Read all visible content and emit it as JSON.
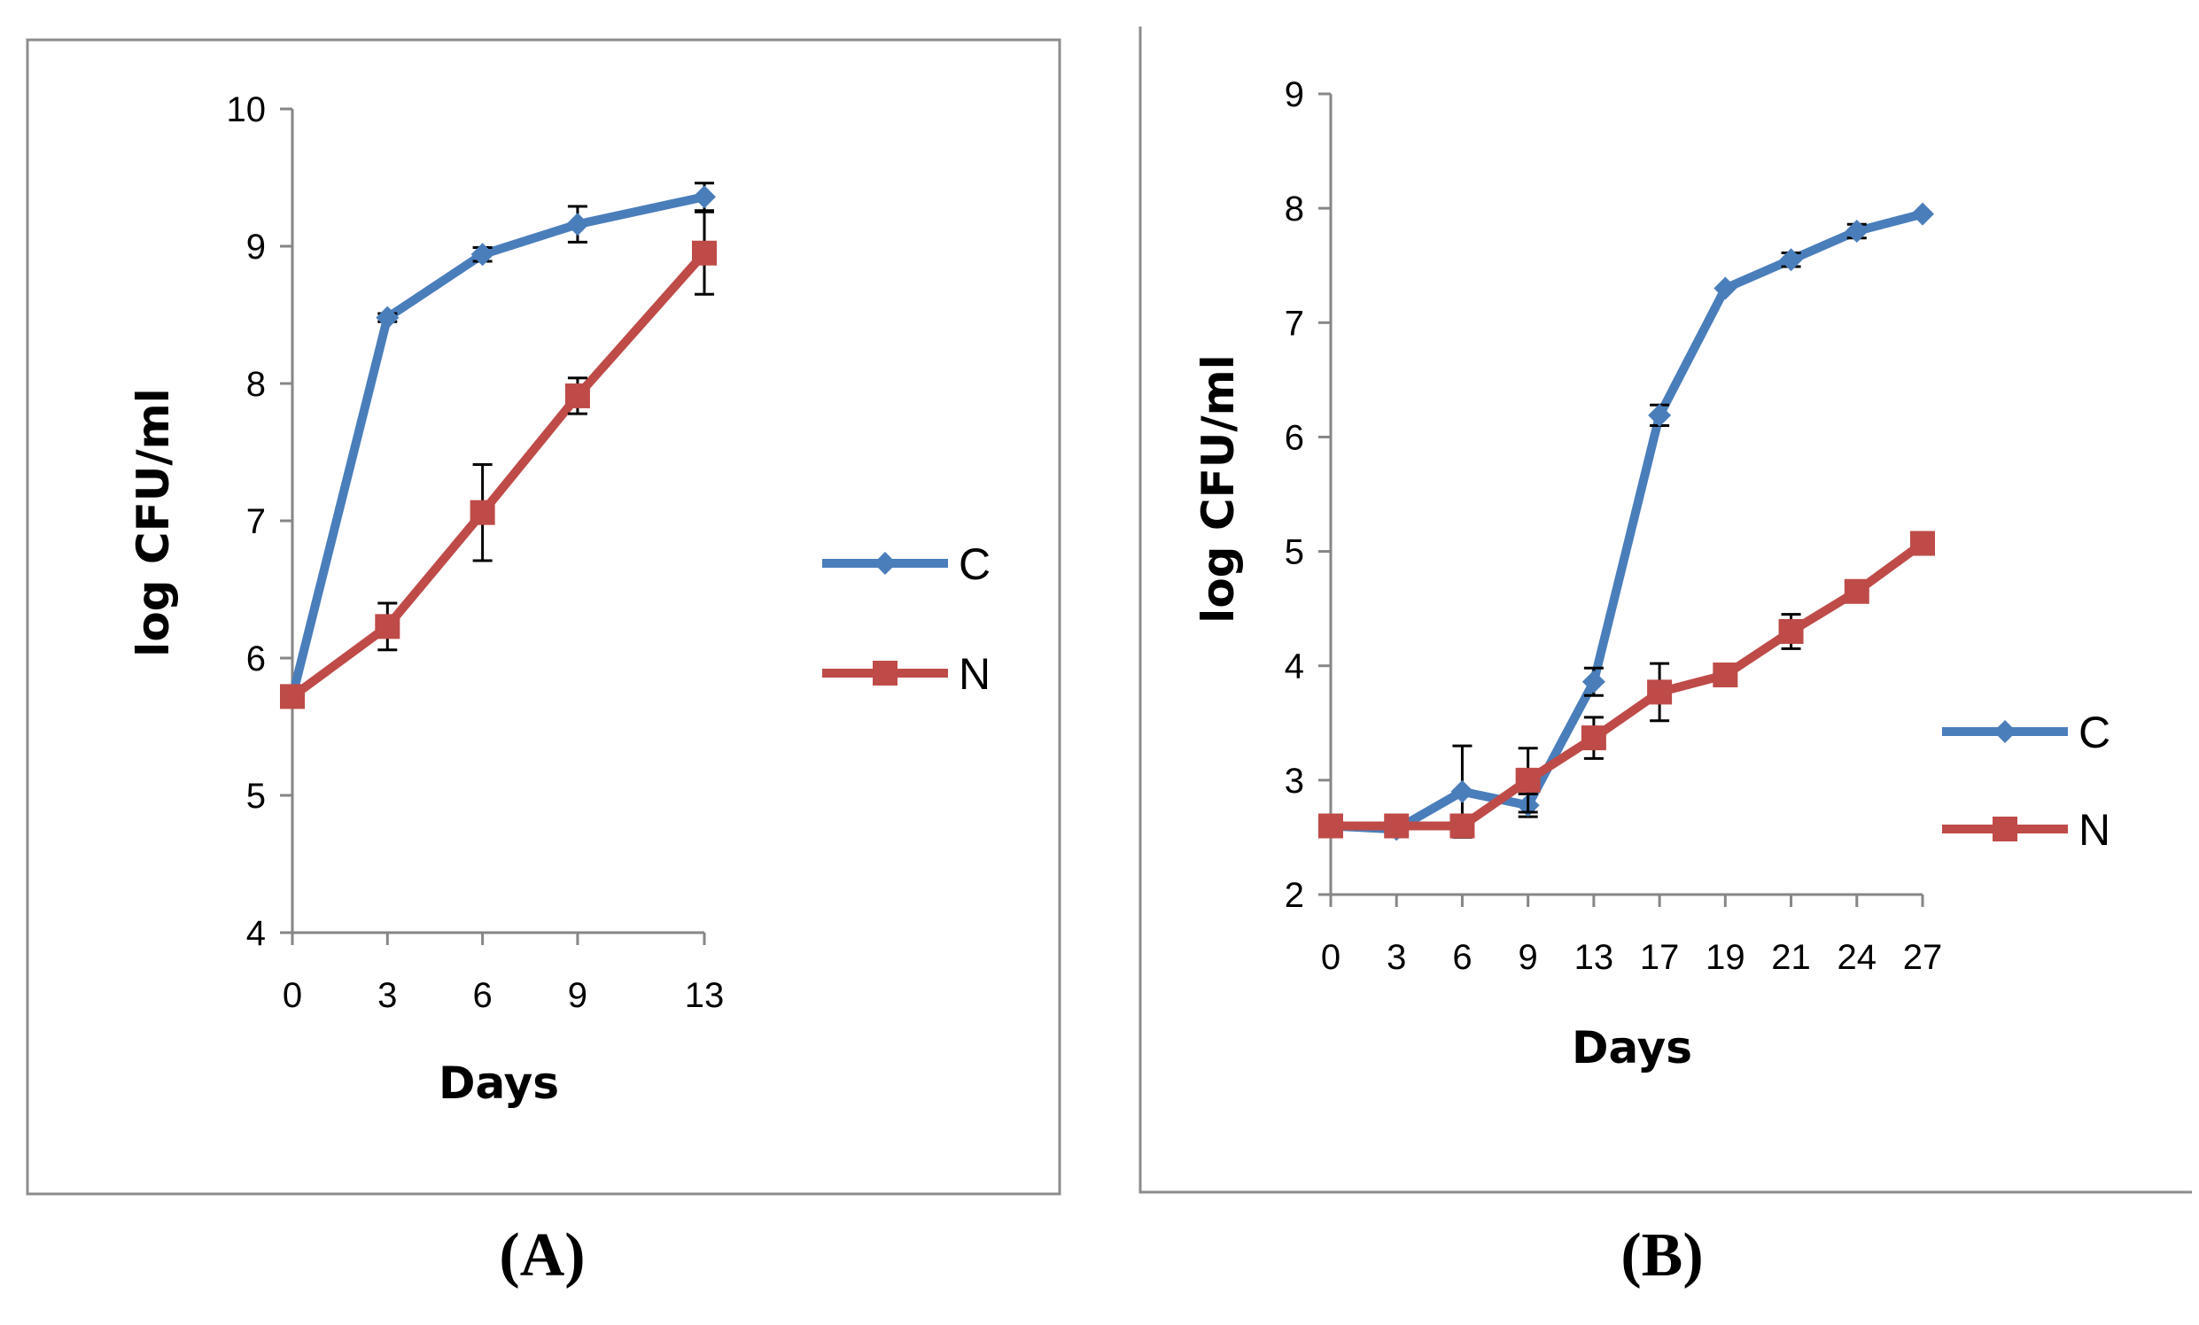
{
  "colors": {
    "C": "#4a7ebb",
    "N": "#be4b48",
    "frame": "#8c8c8c",
    "axis": "#868686"
  },
  "chart_data": [
    {
      "panel": "(A)",
      "type": "line",
      "xlabel": "Days",
      "ylabel": "log CFU/ml",
      "x": [
        0,
        3,
        6,
        9,
        13
      ],
      "ylim": [
        4,
        10
      ],
      "yticks": [
        4,
        5,
        6,
        7,
        8,
        9,
        10
      ],
      "legend": [
        "C",
        "N"
      ],
      "legend_position": "right",
      "series": [
        {
          "name": "C",
          "marker": "diamond",
          "values": [
            5.72,
            8.48,
            8.94,
            9.16,
            9.36
          ],
          "errors": [
            0,
            0.03,
            0.05,
            0.13,
            0.1
          ]
        },
        {
          "name": "N",
          "marker": "square",
          "values": [
            5.72,
            6.23,
            7.06,
            7.91,
            8.95
          ],
          "errors": [
            0,
            0.17,
            0.35,
            0.13,
            0.3
          ]
        }
      ]
    },
    {
      "panel": "(B)",
      "type": "line",
      "xlabel": "Days",
      "ylabel": "log CFU/ml",
      "x": [
        0,
        3,
        6,
        9,
        13,
        17,
        19,
        21,
        24,
        27
      ],
      "ylim": [
        2,
        9
      ],
      "yticks": [
        2,
        3,
        4,
        5,
        6,
        7,
        8,
        9
      ],
      "legend": [
        "C",
        "N"
      ],
      "legend_position": "right",
      "series": [
        {
          "name": "C",
          "marker": "diamond",
          "values": [
            2.6,
            2.57,
            2.9,
            2.78,
            3.86,
            6.19,
            7.3,
            7.55,
            7.8,
            7.95
          ],
          "errors": [
            0,
            0,
            0.4,
            0.1,
            0.12,
            0.09,
            0,
            0.06,
            0.06,
            0
          ]
        },
        {
          "name": "N",
          "marker": "square",
          "values": [
            2.6,
            2.6,
            2.6,
            3.0,
            3.37,
            3.77,
            3.92,
            4.3,
            4.65,
            5.07
          ],
          "errors": [
            0,
            0,
            0.08,
            0.28,
            0.18,
            0.25,
            0,
            0.15,
            0,
            0
          ]
        }
      ]
    }
  ]
}
